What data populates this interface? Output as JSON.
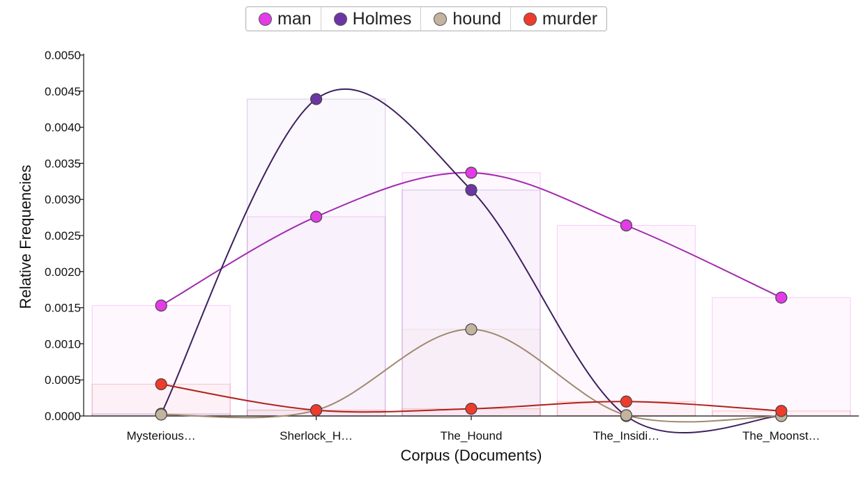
{
  "chart_data": {
    "type": "line",
    "xlabel": "Corpus (Documents)",
    "ylabel": "Relative Frequencies",
    "categories": [
      "Mysterious…",
      "Sherlock_H…",
      "The_Hound",
      "The_Insidi…",
      "The_Moonst…"
    ],
    "ylim": [
      0,
      0.005
    ],
    "yticks": [
      "0.0000",
      "0.0005",
      "0.0010",
      "0.0015",
      "0.0020",
      "0.0025",
      "0.0030",
      "0.0035",
      "0.0040",
      "0.0045",
      "0.0050"
    ],
    "legend_placement": "top-center",
    "grid": false,
    "series": [
      {
        "name": "man",
        "color": "#e43be8",
        "line_color": "#a22ab0",
        "values": [
          0.00153,
          0.00276,
          0.00337,
          0.00264,
          0.00164
        ]
      },
      {
        "name": "Holmes",
        "color": "#6c35a3",
        "line_color": "#3d1e5e",
        "values": [
          3e-05,
          0.00439,
          0.00313,
          0.0,
          0.0
        ]
      },
      {
        "name": "hound",
        "color": "#c3b39f",
        "line_color": "#a0896f",
        "values": [
          2e-05,
          8e-05,
          0.0012,
          1e-05,
          0.0
        ]
      },
      {
        "name": "murder",
        "color": "#ee3b2b",
        "line_color": "#b0201a",
        "values": [
          0.00044,
          8e-05,
          0.0001,
          0.0002,
          7e-05
        ]
      }
    ]
  }
}
